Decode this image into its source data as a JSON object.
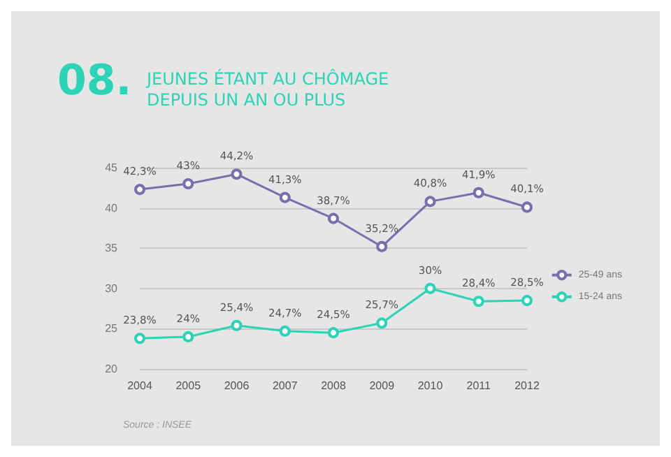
{
  "chart_data": {
    "type": "line",
    "title": "08.",
    "subtitle": "JEUNES ÉTANT AU CHÔMAGE DEPUIS UN AN OU PLUS",
    "categories": [
      "2004",
      "2005",
      "2006",
      "2007",
      "2008",
      "2009",
      "2010",
      "2011",
      "2012"
    ],
    "series": [
      {
        "name": "25-49 ans",
        "color": "#7670ad",
        "values": [
          42.3,
          43,
          44.2,
          41.3,
          38.7,
          35.2,
          40.8,
          41.9,
          40.1
        ],
        "value_labels": [
          "42,3%",
          "43%",
          "44,2%",
          "41,3%",
          "38,7%",
          "35,2%",
          "40,8%",
          "41,9%",
          "40,1%"
        ]
      },
      {
        "name": "15-24 ans",
        "color": "#2dd3b6",
        "values": [
          23.8,
          24,
          25.4,
          24.7,
          24.5,
          25.7,
          30,
          28.4,
          28.5
        ],
        "value_labels": [
          "23,8%",
          "24%",
          "25,4%",
          "24,7%",
          "24,5%",
          "25,7%",
          "30%",
          "28,4%",
          "28,5%"
        ]
      }
    ],
    "ylim": [
      20,
      45
    ],
    "yticks": [
      20,
      25,
      30,
      35,
      40,
      45
    ],
    "grid": "y",
    "legend": "right",
    "marker": "circle",
    "annotations": [
      "Source : INSEE"
    ]
  }
}
